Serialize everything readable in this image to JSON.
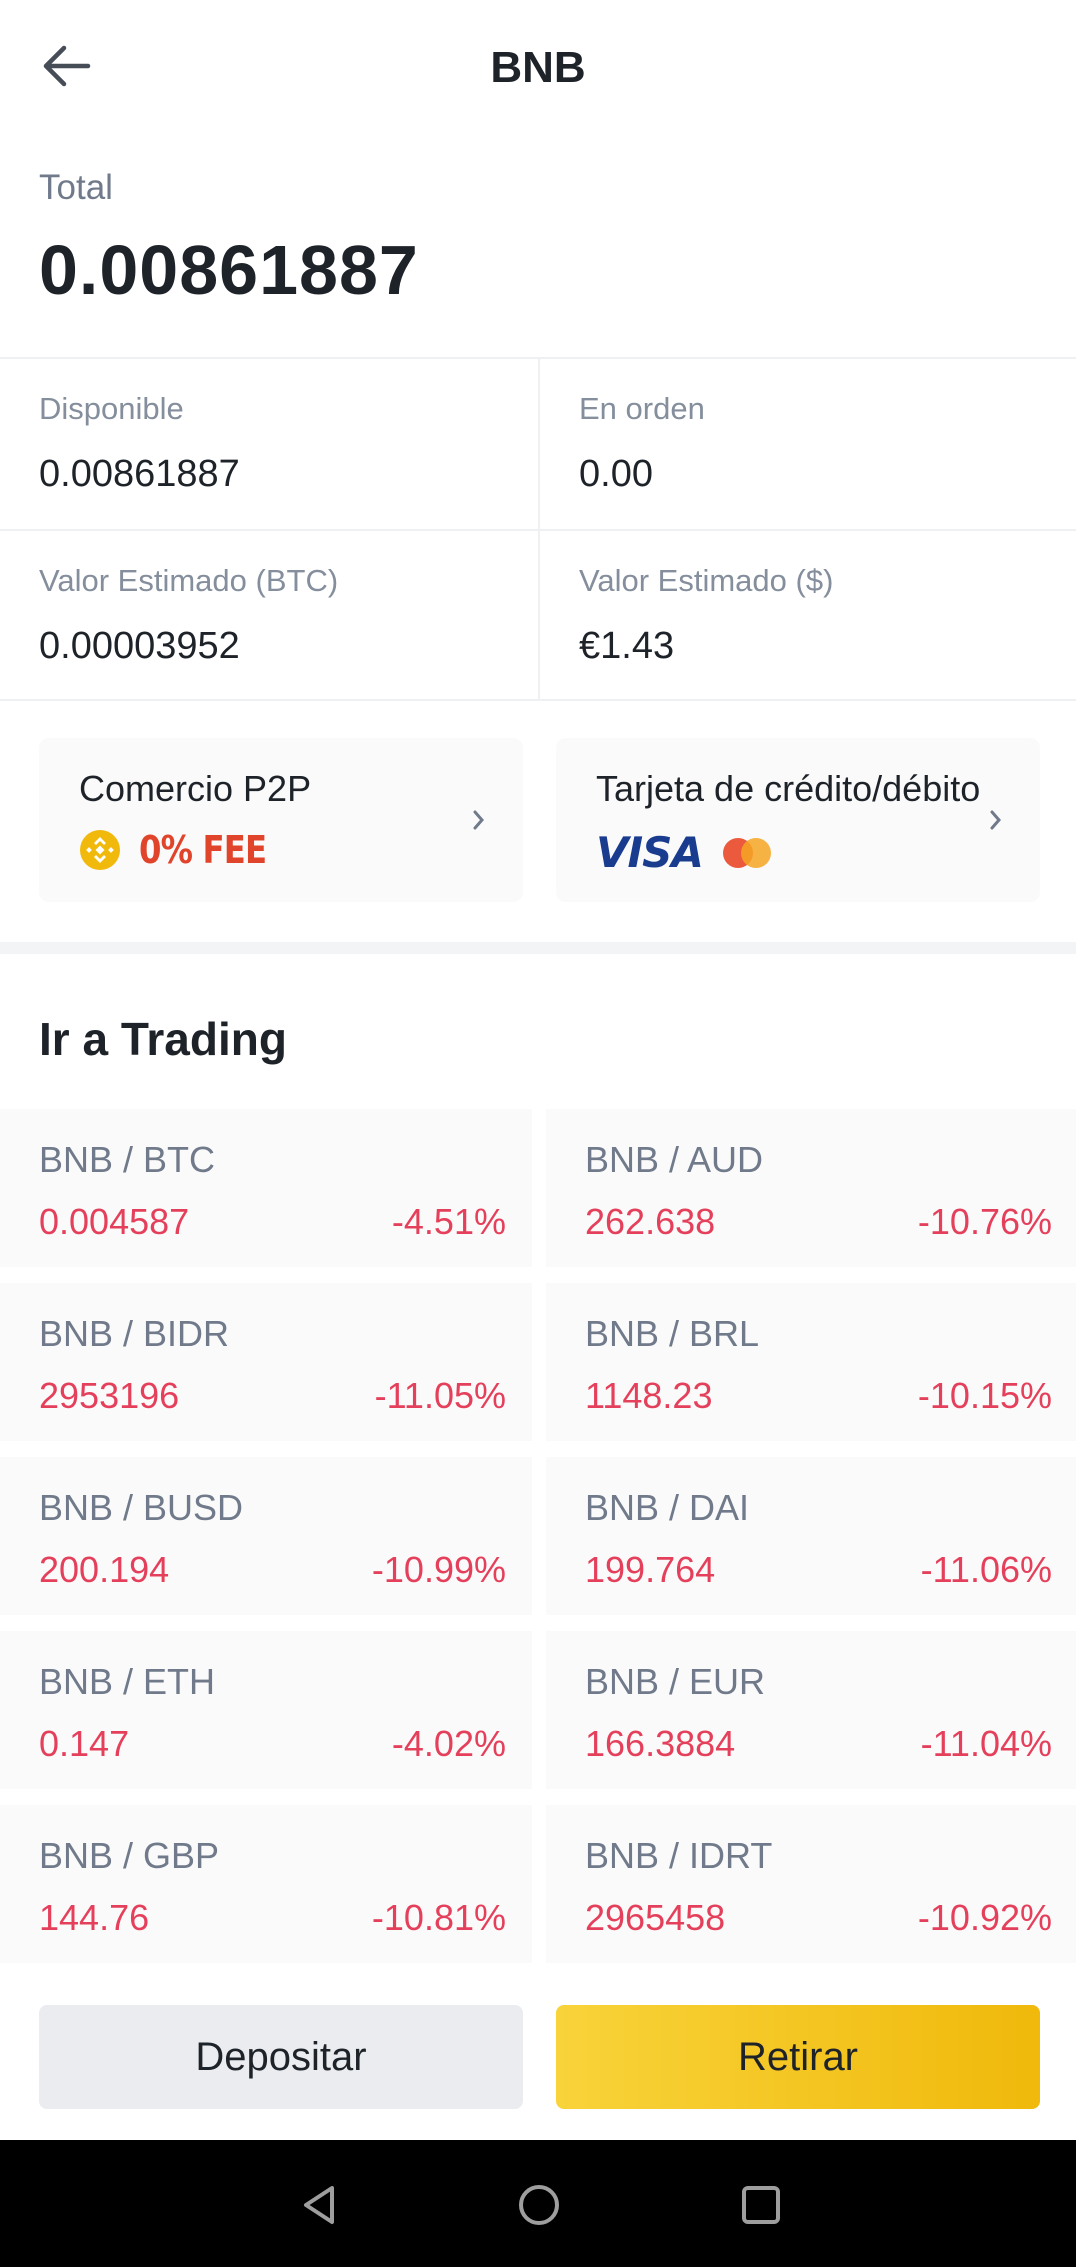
{
  "header": {
    "title": "BNB",
    "back_icon": "arrow-left-icon"
  },
  "total": {
    "label": "Total",
    "value": "0.00861887"
  },
  "stats": {
    "available": {
      "label": "Disponible",
      "value": "0.00861887"
    },
    "in_order": {
      "label": "En orden",
      "value": "0.00"
    },
    "est_btc": {
      "label": "Valor Estimado (BTC)",
      "value": "0.00003952"
    },
    "est_fiat": {
      "label": "Valor Estimado ($)",
      "value": "€1.43"
    }
  },
  "promos": {
    "p2p": {
      "title": "Comercio P2P",
      "fee": "0% FEE",
      "icon": "bnb-coin-icon"
    },
    "card": {
      "title": "Tarjeta de crédito/débito",
      "visa": "VISA",
      "icon": "mastercard-icon"
    }
  },
  "trading": {
    "title": "Ir a Trading",
    "pairs": [
      {
        "name": "BNB / BTC",
        "price": "0.004587",
        "change": "-4.51%"
      },
      {
        "name": "BNB / AUD",
        "price": "262.638",
        "change": "-10.76%"
      },
      {
        "name": "BNB / BIDR",
        "price": "2953196",
        "change": "-11.05%"
      },
      {
        "name": "BNB / BRL",
        "price": "1148.23",
        "change": "-10.15%"
      },
      {
        "name": "BNB / BUSD",
        "price": "200.194",
        "change": "-10.99%"
      },
      {
        "name": "BNB / DAI",
        "price": "199.764",
        "change": "-11.06%"
      },
      {
        "name": "BNB / ETH",
        "price": "0.147",
        "change": "-4.02%"
      },
      {
        "name": "BNB / EUR",
        "price": "166.3884",
        "change": "-11.04%"
      },
      {
        "name": "BNB / GBP",
        "price": "144.76",
        "change": "-10.81%"
      },
      {
        "name": "BNB / IDRT",
        "price": "2965458",
        "change": "-10.92%"
      }
    ]
  },
  "actions": {
    "deposit": "Depositar",
    "withdraw": "Retirar"
  },
  "colors": {
    "accent": "#F0B90B",
    "negative": "#E5405B",
    "text": "#1E2329",
    "muted": "#848E9C"
  }
}
